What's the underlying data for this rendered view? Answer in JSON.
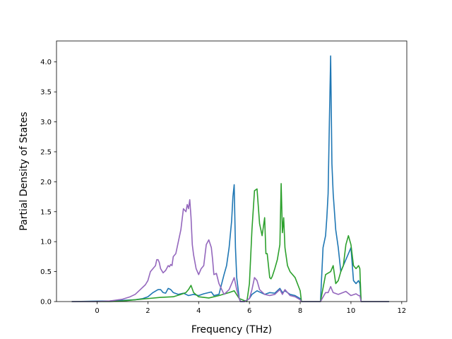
{
  "chart_data": {
    "type": "line",
    "title": "",
    "xlabel": "Frequency (THz)",
    "ylabel": "Partial Density of States",
    "xlim": [
      -1.6,
      12.2
    ],
    "ylim": [
      0,
      4.35
    ],
    "xticks": [
      0,
      2,
      4,
      6,
      8,
      10,
      12
    ],
    "xtick_labels": [
      "0",
      "2",
      "4",
      "6",
      "8",
      "10",
      "12"
    ],
    "yticks": [
      0.0,
      0.5,
      1.0,
      1.5,
      2.0,
      2.5,
      3.0,
      3.5,
      4.0
    ],
    "ytick_labels": [
      "0.0",
      "0.5",
      "1.0",
      "1.5",
      "2.0",
      "2.5",
      "3.0",
      "3.5",
      "4.0"
    ],
    "grid": false,
    "legend": "none",
    "series": [
      {
        "color": "#1f77b4",
        "x": [
          -1.0,
          0.5,
          1.0,
          1.5,
          1.8,
          2.0,
          2.2,
          2.4,
          2.5,
          2.6,
          2.7,
          2.8,
          2.9,
          3.0,
          3.2,
          3.4,
          3.5,
          3.6,
          3.8,
          4.0,
          4.2,
          4.4,
          4.5,
          4.6,
          4.8,
          5.0,
          5.1,
          5.2,
          5.3,
          5.35,
          5.4,
          5.45,
          5.5,
          5.6,
          5.65,
          5.8,
          6.0,
          6.1,
          6.2,
          6.3,
          6.4,
          6.6,
          6.8,
          7.0,
          7.2,
          7.3,
          7.4,
          7.6,
          7.8,
          8.0,
          8.05,
          8.8,
          8.9,
          9.0,
          9.05,
          9.1,
          9.15,
          9.2,
          9.25,
          9.3,
          9.4,
          9.5,
          9.6,
          9.7,
          9.8,
          9.9,
          10.0,
          10.1,
          10.2,
          10.3,
          10.35,
          10.4,
          11.5
        ],
        "y": [
          0,
          0.01,
          0.02,
          0.03,
          0.05,
          0.08,
          0.15,
          0.2,
          0.2,
          0.15,
          0.14,
          0.22,
          0.2,
          0.15,
          0.12,
          0.14,
          0.12,
          0.1,
          0.12,
          0.1,
          0.13,
          0.15,
          0.16,
          0.1,
          0.12,
          0.45,
          0.6,
          0.9,
          1.35,
          1.75,
          1.95,
          0.9,
          0.4,
          0.05,
          0.0,
          0.0,
          0.05,
          0.12,
          0.15,
          0.18,
          0.16,
          0.12,
          0.15,
          0.14,
          0.22,
          0.15,
          0.18,
          0.12,
          0.1,
          0.05,
          0.0,
          0.0,
          0.9,
          1.1,
          1.4,
          1.8,
          3.0,
          4.1,
          2.3,
          1.8,
          1.2,
          0.9,
          0.5,
          0.6,
          0.7,
          0.8,
          0.9,
          0.35,
          0.3,
          0.35,
          0.3,
          0.0,
          0.0
        ]
      },
      {
        "color": "#2ca02c",
        "x": [
          -1.0,
          0.5,
          1.0,
          1.5,
          2.0,
          2.5,
          3.0,
          3.3,
          3.5,
          3.6,
          3.7,
          3.8,
          4.0,
          4.2,
          4.4,
          4.8,
          5.2,
          5.4,
          5.6,
          5.9,
          6.0,
          6.1,
          6.2,
          6.3,
          6.4,
          6.5,
          6.6,
          6.65,
          6.7,
          6.8,
          6.85,
          6.9,
          7.0,
          7.1,
          7.2,
          7.25,
          7.3,
          7.35,
          7.4,
          7.5,
          7.6,
          7.8,
          8.0,
          8.05,
          8.8,
          9.0,
          9.2,
          9.3,
          9.4,
          9.5,
          9.6,
          9.7,
          9.8,
          9.9,
          10.0,
          10.1,
          10.2,
          10.3,
          10.35,
          10.4,
          11.5
        ],
        "y": [
          0,
          0,
          0.01,
          0.03,
          0.05,
          0.07,
          0.08,
          0.12,
          0.15,
          0.2,
          0.27,
          0.15,
          0.08,
          0.07,
          0.06,
          0.1,
          0.15,
          0.18,
          0.05,
          0.0,
          0.3,
          1.2,
          1.85,
          1.88,
          1.3,
          1.1,
          1.4,
          0.8,
          0.8,
          0.4,
          0.38,
          0.42,
          0.55,
          0.7,
          0.95,
          1.97,
          1.15,
          1.4,
          0.9,
          0.6,
          0.5,
          0.4,
          0.18,
          0.0,
          0.0,
          0.45,
          0.5,
          0.6,
          0.3,
          0.35,
          0.5,
          0.6,
          0.95,
          1.1,
          0.95,
          0.6,
          0.55,
          0.6,
          0.55,
          0.0,
          0.0
        ]
      },
      {
        "color": "#9467bd",
        "x": [
          -1.0,
          0.0,
          0.5,
          1.0,
          1.3,
          1.5,
          1.7,
          1.9,
          2.0,
          2.1,
          2.2,
          2.3,
          2.35,
          2.4,
          2.45,
          2.5,
          2.6,
          2.7,
          2.8,
          2.85,
          2.9,
          2.95,
          3.0,
          3.1,
          3.2,
          3.3,
          3.4,
          3.5,
          3.55,
          3.6,
          3.65,
          3.7,
          3.75,
          3.8,
          3.9,
          4.0,
          4.1,
          4.2,
          4.3,
          4.4,
          4.5,
          4.55,
          4.6,
          4.7,
          4.8,
          5.0,
          5.2,
          5.3,
          5.4,
          5.5,
          5.6,
          5.65,
          5.8,
          6.0,
          6.1,
          6.2,
          6.3,
          6.4,
          6.6,
          6.8,
          7.0,
          7.2,
          7.3,
          7.4,
          7.6,
          7.8,
          8.0,
          8.05,
          8.8,
          9.0,
          9.1,
          9.2,
          9.3,
          9.5,
          9.8,
          10.0,
          10.2,
          10.3,
          10.35,
          10.4,
          11.5
        ],
        "y": [
          0,
          0.0,
          0.01,
          0.04,
          0.08,
          0.12,
          0.2,
          0.28,
          0.35,
          0.5,
          0.55,
          0.6,
          0.7,
          0.7,
          0.65,
          0.55,
          0.48,
          0.52,
          0.6,
          0.58,
          0.62,
          0.6,
          0.75,
          0.8,
          1.0,
          1.2,
          1.55,
          1.5,
          1.62,
          1.55,
          1.7,
          1.4,
          0.95,
          0.78,
          0.55,
          0.45,
          0.55,
          0.6,
          0.95,
          1.03,
          0.9,
          0.7,
          0.45,
          0.47,
          0.3,
          0.12,
          0.2,
          0.3,
          0.4,
          0.2,
          0.05,
          0.0,
          0.0,
          0.05,
          0.2,
          0.4,
          0.35,
          0.2,
          0.12,
          0.1,
          0.12,
          0.2,
          0.12,
          0.2,
          0.1,
          0.08,
          0.03,
          0.0,
          0.0,
          0.15,
          0.15,
          0.25,
          0.15,
          0.12,
          0.17,
          0.1,
          0.13,
          0.1,
          0.1,
          0.0,
          0.0
        ]
      }
    ]
  }
}
